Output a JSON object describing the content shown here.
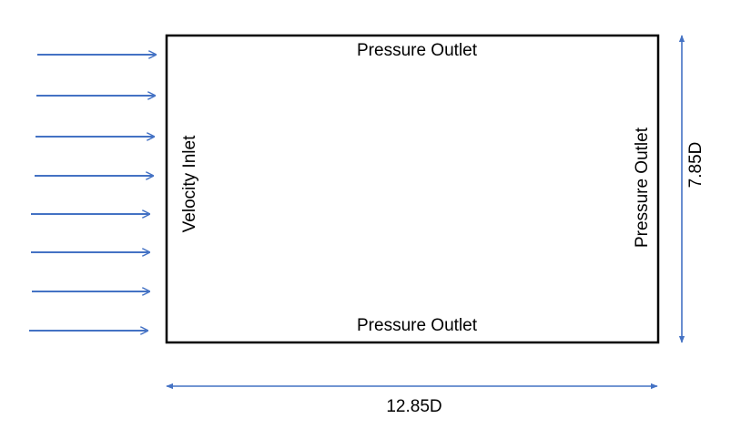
{
  "domain_labels": {
    "top": "Pressure Outlet",
    "bottom": "Pressure Outlet",
    "left": "Velocity Inlet",
    "right": "Pressure Outlet"
  },
  "dimensions": {
    "width": "12.85D",
    "height": "7.85D"
  },
  "inflow": {
    "arrow_count": 8,
    "color": "#4472C4"
  },
  "colors": {
    "boundary": "#000000",
    "dimension_lines": "#4472C4",
    "text": "#000000"
  }
}
